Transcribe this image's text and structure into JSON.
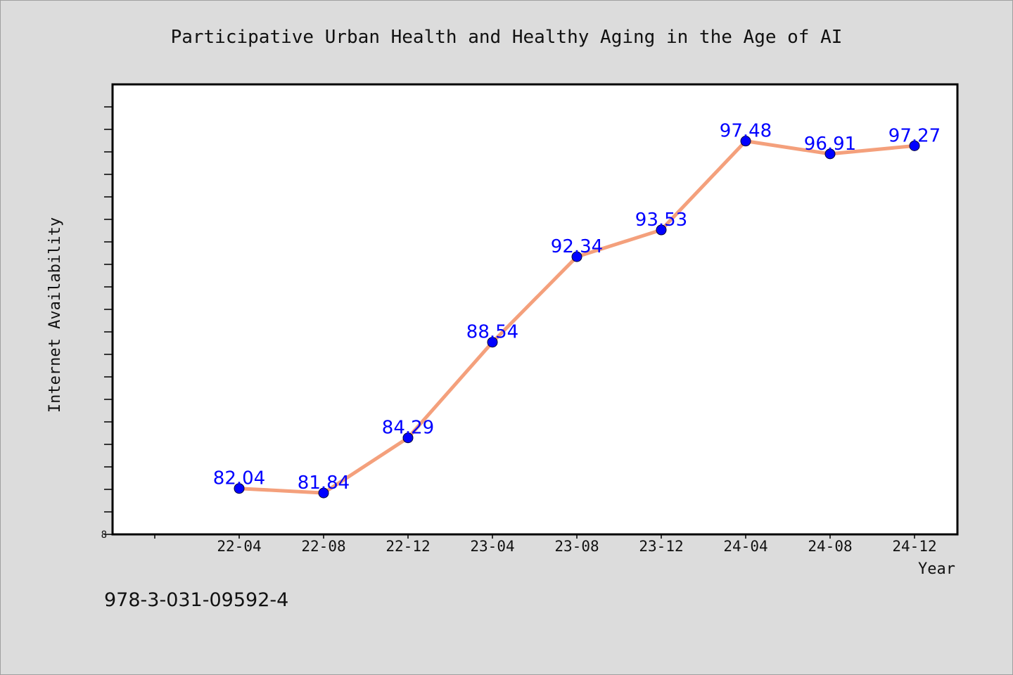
{
  "chart_data": {
    "type": "line",
    "title": "Participative Urban Health and Healthy Aging in the Age of AI",
    "xlabel": "Year",
    "ylabel": "Internet Availability",
    "categories": [
      "22-04",
      "22-08",
      "22-12",
      "23-04",
      "23-08",
      "23-12",
      "24-04",
      "24-08",
      "24-12"
    ],
    "values": [
      82.04,
      81.84,
      84.29,
      88.54,
      92.34,
      93.53,
      97.48,
      96.91,
      97.27
    ],
    "data_labels": [
      "82.04",
      "81.84",
      "84.29",
      "88.54",
      "92.34",
      "93.53",
      "97.48",
      "96.91",
      "97.27"
    ],
    "y_tick_label": "8",
    "ylim": [
      80,
      100
    ],
    "y_minor_tick_step": 1,
    "grid": false,
    "line_color": "#f4a07c",
    "marker_color": "#0000ff",
    "label_color": "#0000ff"
  },
  "footer_text": "978-3-031-09592-4"
}
